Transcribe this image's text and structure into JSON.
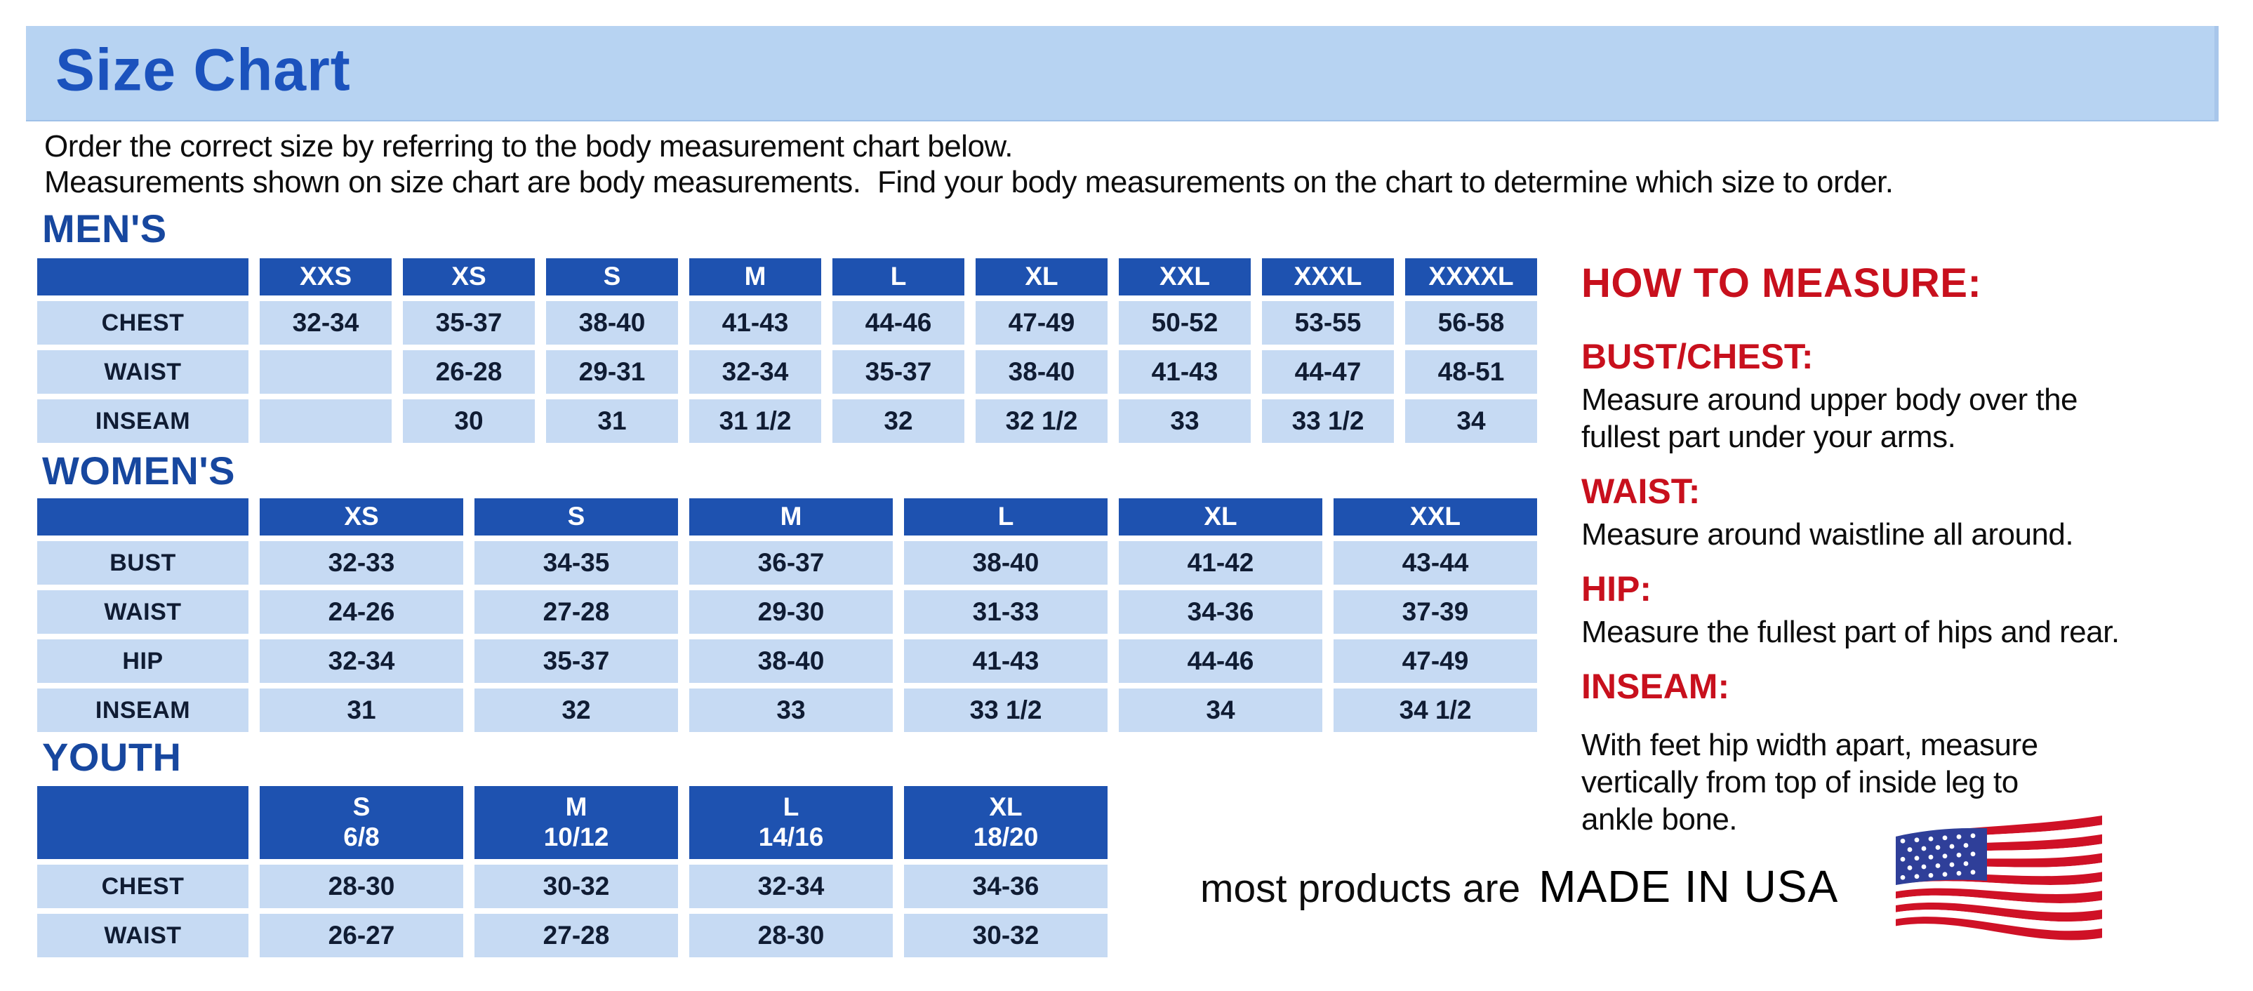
{
  "page_title": "Size Chart",
  "intro": {
    "text": "Order the correct size by referring to the body measurement chart below.\nMeasurements shown on size chart are body measurements.  Find your body measurements on the chart to determine which size to order."
  },
  "tables": {
    "mens": {
      "heading": "MEN'S",
      "columns": [
        "XXS",
        "XS",
        "S",
        "M",
        "L",
        "XL",
        "XXL",
        "XXXL",
        "XXXXL"
      ],
      "rows": [
        {
          "label": "CHEST",
          "values": [
            "32-34",
            "35-37",
            "38-40",
            "41-43",
            "44-46",
            "47-49",
            "50-52",
            "53-55",
            "56-58"
          ]
        },
        {
          "label": "WAIST",
          "values": [
            "",
            "26-28",
            "29-31",
            "32-34",
            "35-37",
            "38-40",
            "41-43",
            "44-47",
            "48-51"
          ]
        },
        {
          "label": "INSEAM",
          "values": [
            "",
            "30",
            "31",
            "31 1/2",
            "32",
            "32 1/2",
            "33",
            "33 1/2",
            "34"
          ]
        }
      ]
    },
    "womens": {
      "heading": "WOMEN'S",
      "columns": [
        "XS",
        "S",
        "M",
        "L",
        "XL",
        "XXL"
      ],
      "rows": [
        {
          "label": "BUST",
          "values": [
            "32-33",
            "34-35",
            "36-37",
            "38-40",
            "41-42",
            "43-44"
          ]
        },
        {
          "label": "WAIST",
          "values": [
            "24-26",
            "27-28",
            "29-30",
            "31-33",
            "34-36",
            "37-39"
          ]
        },
        {
          "label": "HIP",
          "values": [
            "32-34",
            "35-37",
            "38-40",
            "41-43",
            "44-46",
            "47-49"
          ]
        },
        {
          "label": "INSEAM",
          "values": [
            "31",
            "32",
            "33",
            "33 1/2",
            "34",
            "34 1/2"
          ]
        }
      ]
    },
    "youth": {
      "heading": "YOUTH",
      "columns": [
        "S\n6/8",
        "M\n10/12",
        "L\n14/16",
        "XL\n18/20"
      ],
      "rows": [
        {
          "label": "CHEST",
          "values": [
            "28-30",
            "30-32",
            "32-34",
            "34-36"
          ]
        },
        {
          "label": "WAIST",
          "values": [
            "26-27",
            "27-28",
            "28-30",
            "30-32"
          ]
        }
      ]
    }
  },
  "how_to_measure": {
    "heading": "HOW TO MEASURE:",
    "sections": [
      {
        "label": "BUST/CHEST:",
        "text": "Measure around upper body over the\nfullest part under your arms."
      },
      {
        "label": "WAIST:",
        "text": "Measure around waistline all around."
      },
      {
        "label": "HIP:",
        "text": "Measure the fullest part of hips and rear."
      },
      {
        "label": "INSEAM:",
        "text": "With feet hip width apart, measure\nvertically from top of inside leg to\nankle bone.",
        "extra_gap": true
      }
    ]
  },
  "footer": {
    "prefix": "most products are",
    "emphasis": "MADE IN USA",
    "flag_icon": "usa-flag-icon"
  },
  "colors": {
    "title_bar_blue": "#b7d3f2",
    "title_text_blue": "#1b52bd",
    "section_heading_blue": "#17479f",
    "table_header_blue": "#1e52b0",
    "table_cell_blue": "#c6daf3",
    "table_text_navy": "#101c33",
    "accent_red": "#c8101d",
    "flag_red": "#cf1126",
    "flag_blue": "#2f3f99"
  }
}
